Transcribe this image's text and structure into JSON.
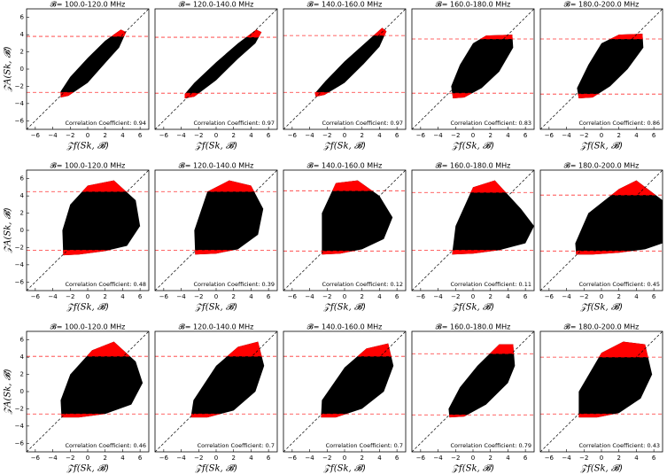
{
  "chart_data": [
    {
      "type": "scatter",
      "title": "𝓑= 100.0-120.0 MHz",
      "xlabel": "𝒵f(Sk, 𝓑)",
      "ylabel": "𝒵A(Sk, 𝓑)",
      "annotation": "Correlation Coefficient: 0.94",
      "color": "#000000",
      "outlier_color": "#ff0000",
      "xlim": [
        -7,
        7
      ],
      "ylim": [
        -7,
        7
      ],
      "xticks": [
        {
          "value": -6,
          "label": "−6"
        },
        {
          "value": -4,
          "label": "−4"
        },
        {
          "value": -2,
          "label": "−2"
        },
        0,
        2,
        4,
        6
      ],
      "yticks": [
        {
          "value": -6,
          "label": "−6"
        },
        {
          "value": -4,
          "label": "−4"
        },
        {
          "value": -2,
          "label": "−2"
        },
        0,
        2,
        4,
        6
      ],
      "thresholds": [
        3.8,
        -2.7
      ],
      "hull": {
        "x": [
          -3.1,
          -2.2,
          0,
          2,
          3.6,
          4.4,
          3.8,
          2,
          0,
          -2,
          -3.1
        ],
        "y": [
          -3.3,
          -3.1,
          -1.6,
          0.7,
          2.5,
          4.3,
          4.6,
          3.3,
          1.3,
          -0.9,
          -2.6
        ]
      }
    },
    {
      "type": "scatter",
      "title": "𝓑= 120.0-140.0 MHz",
      "xlabel": "𝒵f(Sk, 𝓑)",
      "annotation": "Correlation Coefficient: 0.97",
      "color": "#000000",
      "outlier_color": "#ff0000",
      "xlim": [
        -7,
        7
      ],
      "ylim": [
        -7,
        7
      ],
      "xticks": [
        {
          "value": -6,
          "label": "−6"
        },
        {
          "value": -4,
          "label": "−4"
        },
        {
          "value": -2,
          "label": "−2"
        },
        0,
        2,
        4,
        6
      ],
      "thresholds": [
        3.7,
        -2.8
      ],
      "hull": {
        "x": [
          -3.6,
          -2.5,
          0,
          2.5,
          4.5,
          5.2,
          4.6,
          2.5,
          0,
          -2.5,
          -3.6
        ],
        "y": [
          -3.4,
          -3.2,
          -1.3,
          1.2,
          3.0,
          4.3,
          4.6,
          3.0,
          0.8,
          -1.6,
          -2.9
        ]
      }
    },
    {
      "type": "scatter",
      "title": "𝓑= 140.0-160.0 MHz",
      "xlabel": "𝒵f(Sk, 𝓑)",
      "annotation": "Correlation Coefficient: 0.97",
      "color": "#000000",
      "outlier_color": "#ff0000",
      "xlim": [
        -7,
        7
      ],
      "ylim": [
        -7,
        7
      ],
      "xticks": [
        {
          "value": -6,
          "label": "−6"
        },
        {
          "value": -4,
          "label": "−4"
        },
        {
          "value": -2,
          "label": "−2"
        },
        0,
        2,
        4,
        6
      ],
      "thresholds": [
        3.9,
        -2.7
      ],
      "hull": {
        "x": [
          -3.3,
          -2.3,
          0,
          2.2,
          4,
          4.8,
          4.3,
          2.2,
          0,
          -2.2,
          -3.4
        ],
        "y": [
          -3.2,
          -3.0,
          -1.6,
          0.6,
          2.6,
          4.4,
          4.8,
          2.9,
          0.9,
          -1.4,
          -2.8
        ]
      }
    },
    {
      "type": "scatter",
      "title": "𝓑= 160.0-180.0 MHz",
      "xlabel": "𝒵f(Sk, 𝓑)",
      "annotation": "Correlation Coefficient: 0.83",
      "color": "#000000",
      "outlier_color": "#ff0000",
      "xlim": [
        -7,
        7
      ],
      "ylim": [
        -7,
        7
      ],
      "xticks": [
        {
          "value": -6,
          "label": "−6"
        },
        {
          "value": -4,
          "label": "−4"
        },
        {
          "value": -2,
          "label": "−2"
        },
        0,
        2,
        4,
        6
      ],
      "thresholds": [
        3.5,
        -2.8
      ],
      "hull": {
        "x": [
          -2.3,
          -1,
          1,
          3,
          4.6,
          4.5,
          1.5,
          0,
          -1.5,
          -2.5
        ],
        "y": [
          -3.4,
          -3.3,
          -2.2,
          -0.3,
          2.5,
          4.0,
          3.9,
          3.0,
          0.5,
          -2.0
        ]
      }
    },
    {
      "type": "scatter",
      "title": "𝓑= 180.0-200.0 MHz",
      "xlabel": "𝒵f(Sk, 𝓑)",
      "annotation": "Correlation Coefficient: 0.86",
      "color": "#000000",
      "outlier_color": "#ff0000",
      "xlim": [
        -7,
        7
      ],
      "ylim": [
        -7,
        7
      ],
      "xticks": [
        {
          "value": -6,
          "label": "−6"
        },
        {
          "value": -4,
          "label": "−4"
        },
        {
          "value": -2,
          "label": "−2"
        },
        0,
        2,
        4,
        6
      ],
      "thresholds": [
        3.5,
        -2.9
      ],
      "hull": {
        "x": [
          -2.6,
          -1,
          1,
          3,
          4.8,
          4.7,
          2,
          0,
          -1.5,
          -2.8
        ],
        "y": [
          -3.4,
          -3.3,
          -2.0,
          0,
          2.5,
          4.1,
          4.0,
          3.0,
          0.5,
          -2.2
        ]
      }
    },
    {
      "type": "scatter",
      "title": "𝓑= 100.0-120.0 MHz",
      "xlabel": "𝒵f(Sk, 𝓑)",
      "ylabel": "𝒵A(Sk, 𝓑)",
      "annotation": "Correlation Coefficient: 0.48",
      "color": "#000000",
      "outlier_color": "#ff0000",
      "xlim": [
        -7,
        7
      ],
      "ylim": [
        -7,
        7
      ],
      "xticks": [
        {
          "value": -6,
          "label": "−6"
        },
        {
          "value": -4,
          "label": "−4"
        },
        {
          "value": -2,
          "label": "−2"
        },
        0,
        2,
        4,
        6
      ],
      "yticks": [
        {
          "value": -6,
          "label": "−6"
        },
        {
          "value": -4,
          "label": "−4"
        },
        {
          "value": -2,
          "label": "−2"
        },
        0,
        2,
        4,
        6
      ],
      "thresholds": [
        4.5,
        -2.3
      ],
      "hull": {
        "x": [
          -2.8,
          -1,
          2,
          4.5,
          6,
          5.5,
          3,
          0,
          -2,
          -2.9
        ],
        "y": [
          -2.9,
          -2.8,
          -2.4,
          -1.8,
          0.5,
          3.5,
          5.8,
          5.2,
          3,
          0
        ]
      }
    },
    {
      "type": "scatter",
      "title": "𝓑= 120.0-140.0 MHz",
      "xlabel": "𝒵f(Sk, 𝓑)",
      "annotation": "Correlation Coefficient: 0.39",
      "color": "#000000",
      "outlier_color": "#ff0000",
      "xlim": [
        -7,
        7
      ],
      "ylim": [
        -7,
        7
      ],
      "xticks": [
        {
          "value": -6,
          "label": "−6"
        },
        {
          "value": -4,
          "label": "−4"
        },
        {
          "value": -2,
          "label": "−2"
        },
        0,
        2,
        4,
        6
      ],
      "thresholds": [
        4.5,
        -2.3
      ],
      "hull": {
        "x": [
          -2.4,
          0,
          2.5,
          4.8,
          5.4,
          4,
          1.5,
          -1,
          -2.5
        ],
        "y": [
          -2.8,
          -2.7,
          -2.2,
          -0.5,
          2.5,
          5.2,
          5.8,
          4.5,
          0
        ]
      }
    },
    {
      "type": "scatter",
      "title": "𝓑= 140.0-160.0 MHz",
      "xlabel": "𝒵f(Sk, 𝓑)",
      "annotation": "Correlation Coefficient: 0.12",
      "color": "#000000",
      "outlier_color": "#ff0000",
      "xlim": [
        -7,
        7
      ],
      "ylim": [
        -7,
        7
      ],
      "xticks": [
        {
          "value": -6,
          "label": "−6"
        },
        {
          "value": -4,
          "label": "−4"
        },
        {
          "value": -2,
          "label": "−2"
        },
        0,
        2,
        4,
        6
      ],
      "thresholds": [
        4.6,
        -2.4
      ],
      "hull": {
        "x": [
          -2.6,
          -0.5,
          2,
          4.5,
          5.5,
          4,
          1.5,
          -1,
          -2.6
        ],
        "y": [
          -2.8,
          -2.7,
          -2.2,
          -1,
          1.5,
          4,
          5.8,
          5.5,
          2
        ]
      }
    },
    {
      "type": "scatter",
      "title": "𝓑= 160.0-180.0 MHz",
      "xlabel": "𝒵f(Sk, 𝓑)",
      "annotation": "Correlation Coefficient: 0.11",
      "color": "#000000",
      "outlier_color": "#ff0000",
      "xlim": [
        -7,
        7
      ],
      "ylim": [
        -7,
        7
      ],
      "xticks": [
        {
          "value": -6,
          "label": "−6"
        },
        {
          "value": -4,
          "label": "−4"
        },
        {
          "value": -2,
          "label": "−2"
        },
        0,
        2,
        4,
        6
      ],
      "thresholds": [
        4.4,
        -2.3
      ],
      "hull": {
        "x": [
          -2.4,
          0,
          3,
          6,
          7,
          5.5,
          2.5,
          0,
          -2
        ],
        "y": [
          -2.8,
          -2.7,
          -2.3,
          -1.5,
          0.5,
          2.5,
          5.8,
          5,
          0.5
        ]
      }
    },
    {
      "type": "scatter",
      "title": "𝓑= 180.0-200.0 MHz",
      "xlabel": "𝒵f(Sk, 𝓑)",
      "annotation": "Correlation Coefficient: 0.45",
      "color": "#000000",
      "outlier_color": "#ff0000",
      "xlim": [
        -7,
        7
      ],
      "ylim": [
        -7,
        7
      ],
      "xticks": [
        {
          "value": -6,
          "label": "−6"
        },
        {
          "value": -4,
          "label": "−4"
        },
        {
          "value": -2,
          "label": "−2"
        },
        0,
        2,
        4,
        6
      ],
      "thresholds": [
        4.1,
        -2.4
      ],
      "hull": {
        "x": [
          -2.9,
          -1,
          2,
          5,
          7,
          7,
          4,
          2,
          -1.5,
          -3
        ],
        "y": [
          -2.8,
          -2.8,
          -2.6,
          -2.2,
          -1.5,
          3.5,
          5.8,
          4.8,
          2,
          -1.5
        ]
      }
    },
    {
      "type": "scatter",
      "title": "𝓑= 100.0-120.0 MHz",
      "xlabel": "𝒵f(Sk, 𝓑)",
      "ylabel": "𝒵A(Sk, 𝓑)",
      "annotation": "Correlation Coefficient: 0.46",
      "color": "#000000",
      "outlier_color": "#ff0000",
      "xlim": [
        -7,
        7
      ],
      "ylim": [
        -7,
        7
      ],
      "xticks": [
        {
          "value": -6,
          "label": "−6"
        },
        {
          "value": -4,
          "label": "−4"
        },
        {
          "value": -2,
          "label": "−2"
        },
        0,
        2,
        4,
        6
      ],
      "yticks": [
        {
          "value": -6,
          "label": "−6"
        },
        {
          "value": -4,
          "label": "−4"
        },
        {
          "value": -2,
          "label": "−2"
        },
        0,
        2,
        4,
        6
      ],
      "thresholds": [
        4.1,
        -2.6
      ],
      "hull": {
        "x": [
          -3,
          -1,
          2,
          5,
          6.3,
          5.5,
          3,
          0.5,
          -2,
          -3.1
        ],
        "y": [
          -3.0,
          -3.0,
          -2.6,
          -1.5,
          1,
          3.5,
          5.8,
          4.8,
          2,
          -1
        ]
      }
    },
    {
      "type": "scatter",
      "title": "𝓑= 120.0-140.0 MHz",
      "xlabel": "𝒵f(Sk, 𝓑)",
      "annotation": "Correlation Coefficient: 0.7",
      "color": "#000000",
      "outlier_color": "#ff0000",
      "xlim": [
        -7,
        7
      ],
      "ylim": [
        -7,
        7
      ],
      "xticks": [
        {
          "value": -6,
          "label": "−6"
        },
        {
          "value": -4,
          "label": "−4"
        },
        {
          "value": -2,
          "label": "−2"
        },
        0,
        2,
        4,
        6
      ],
      "thresholds": [
        4.1,
        -2.6
      ],
      "hull": {
        "x": [
          -2.9,
          -1,
          2,
          4.5,
          5.5,
          4.8,
          2.5,
          0,
          -2.6
        ],
        "y": [
          -3.0,
          -3.0,
          -2.2,
          0,
          3,
          5.8,
          5.2,
          3,
          -1
        ]
      }
    },
    {
      "type": "scatter",
      "title": "𝓑= 140.0-160.0 MHz",
      "xlabel": "𝒵f(Sk, 𝓑)",
      "annotation": "Correlation Coefficient: 0.7",
      "color": "#000000",
      "outlier_color": "#ff0000",
      "xlim": [
        -7,
        7
      ],
      "ylim": [
        -7,
        7
      ],
      "xticks": [
        {
          "value": -6,
          "label": "−6"
        },
        {
          "value": -4,
          "label": "−4"
        },
        {
          "value": -2,
          "label": "−2"
        },
        0,
        2,
        4,
        6
      ],
      "thresholds": [
        4.1,
        -2.6
      ],
      "hull": {
        "x": [
          -2.7,
          -1,
          2,
          4.5,
          5.6,
          5,
          2.5,
          0,
          -2.6
        ],
        "y": [
          -3.0,
          -3.0,
          -2.0,
          0,
          3,
          5.6,
          5.0,
          2.8,
          -1
        ]
      }
    },
    {
      "type": "scatter",
      "title": "𝓑= 160.0-180.0 MHz",
      "xlabel": "𝒵f(Sk, 𝓑)",
      "annotation": "Correlation Coefficient: 0.79",
      "color": "#000000",
      "outlier_color": "#ff0000",
      "xlim": [
        -7,
        7
      ],
      "ylim": [
        -7,
        7
      ],
      "xticks": [
        {
          "value": -6,
          "label": "−6"
        },
        {
          "value": -4,
          "label": "−4"
        },
        {
          "value": -2,
          "label": "−2"
        },
        0,
        2,
        4,
        6
      ],
      "thresholds": [
        4.4,
        -2.7
      ],
      "hull": {
        "x": [
          -2.7,
          -1,
          1.5,
          4,
          4.8,
          4.6,
          3,
          0.5,
          -1.5,
          -2.8
        ],
        "y": [
          -3.0,
          -2.9,
          -1.5,
          1,
          3,
          5.5,
          5.5,
          3.0,
          0.5,
          -2
        ]
      }
    },
    {
      "type": "scatter",
      "title": "𝓑= 180.0-200.0 MHz",
      "xlabel": "𝒵f(Sk, 𝓑)",
      "annotation": "Correlation Coefficient: 0.43",
      "color": "#000000",
      "outlier_color": "#ff0000",
      "xlim": [
        -7,
        7
      ],
      "ylim": [
        -7,
        7
      ],
      "xticks": [
        {
          "value": -6,
          "label": "−6"
        },
        {
          "value": -4,
          "label": "−4"
        },
        {
          "value": -2,
          "label": "−2"
        },
        0,
        2,
        4,
        6
      ],
      "thresholds": [
        4.0,
        -2.6
      ],
      "hull": {
        "x": [
          -2.6,
          -0.5,
          2,
          4.5,
          5.8,
          5,
          2.5,
          0,
          -2.6
        ],
        "y": [
          -3.0,
          -3.0,
          -2.5,
          -0.8,
          2,
          5.5,
          5.8,
          4.5,
          0
        ]
      }
    }
  ]
}
